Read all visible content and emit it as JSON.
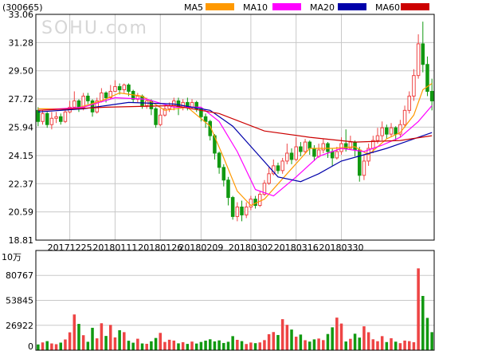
{
  "header": {
    "code": "(300665)",
    "watermark": "SOHU.com"
  },
  "legend": [
    {
      "label": "MA5",
      "color": "#ff9900"
    },
    {
      "label": "MA10",
      "color": "#ff00ff"
    },
    {
      "label": "MA20",
      "color": "#0000aa"
    },
    {
      "label": "MA60",
      "color": "#cc0000"
    }
  ],
  "colors": {
    "up": "#ee4444",
    "down": "#119911",
    "grid": "#c8c8c8",
    "axis": "#000000"
  },
  "volume_unit": "10万",
  "chart_data": [
    {
      "type": "candlestick",
      "price_ticks": [
        "33.06",
        "31.28",
        "29.50",
        "27.72",
        "25.94",
        "24.15",
        "22.37",
        "20.59",
        "18.81"
      ],
      "ylim": [
        18.81,
        33.06
      ],
      "date_ticks": [
        "20171225",
        "20180111",
        "20180126",
        "20180209",
        "20180302",
        "20180316",
        "20180330"
      ],
      "candles": [
        [
          27.0,
          26.3,
          27.2,
          26.0
        ],
        [
          26.3,
          26.8,
          27.0,
          26.1
        ],
        [
          26.8,
          26.1,
          26.9,
          25.9
        ],
        [
          26.1,
          26.5,
          26.9,
          25.8
        ],
        [
          26.5,
          26.6,
          26.9,
          26.2
        ],
        [
          26.6,
          26.3,
          26.8,
          26.1
        ],
        [
          26.3,
          26.9,
          27.1,
          26.2
        ],
        [
          26.9,
          27.2,
          27.6,
          26.8
        ],
        [
          27.2,
          27.6,
          28.2,
          27.1
        ],
        [
          27.6,
          27.2,
          27.7,
          26.9
        ],
        [
          27.2,
          27.9,
          28.1,
          27.0
        ],
        [
          27.9,
          27.6,
          28.1,
          27.4
        ],
        [
          27.6,
          26.9,
          27.7,
          26.6
        ],
        [
          26.9,
          27.6,
          27.8,
          26.8
        ],
        [
          27.6,
          28.1,
          28.4,
          27.5
        ],
        [
          28.1,
          27.8,
          28.2,
          27.5
        ],
        [
          27.8,
          28.2,
          28.6,
          27.7
        ],
        [
          28.2,
          28.5,
          28.9,
          28.2
        ],
        [
          28.5,
          28.3,
          28.7,
          28.0
        ],
        [
          28.3,
          28.6,
          28.7,
          28.1
        ],
        [
          28.6,
          28.2,
          28.7,
          27.9
        ],
        [
          28.2,
          27.7,
          28.3,
          27.5
        ],
        [
          27.7,
          27.9,
          28.1,
          27.5
        ],
        [
          27.9,
          27.3,
          28.0,
          27.1
        ],
        [
          27.3,
          27.6,
          27.8,
          27.1
        ],
        [
          27.6,
          27.1,
          27.7,
          26.7
        ],
        [
          27.1,
          26.1,
          27.2,
          25.9
        ],
        [
          26.1,
          26.7,
          27.1,
          26.0
        ],
        [
          26.7,
          27.1,
          27.3,
          26.6
        ],
        [
          27.1,
          27.3,
          27.5,
          26.9
        ],
        [
          27.3,
          27.6,
          27.8,
          27.0
        ],
        [
          27.6,
          27.2,
          27.8,
          26.7
        ],
        [
          27.2,
          27.5,
          27.7,
          27.0
        ],
        [
          27.5,
          27.2,
          27.8,
          27.0
        ],
        [
          27.2,
          27.5,
          27.7,
          27.1
        ],
        [
          27.5,
          27.1,
          27.6,
          26.9
        ],
        [
          27.1,
          26.6,
          27.2,
          26.3
        ],
        [
          26.6,
          26.3,
          26.8,
          25.9
        ],
        [
          26.3,
          25.4,
          26.4,
          25.1
        ],
        [
          25.4,
          24.3,
          25.5,
          23.9
        ],
        [
          24.3,
          23.4,
          24.4,
          23.0
        ],
        [
          23.4,
          22.6,
          23.6,
          22.2
        ],
        [
          22.6,
          21.5,
          22.8,
          21.0
        ],
        [
          21.5,
          20.3,
          21.6,
          20.1
        ],
        [
          20.3,
          20.9,
          21.2,
          20.0
        ],
        [
          20.9,
          20.4,
          21.3,
          20.0
        ],
        [
          20.4,
          20.9,
          21.2,
          20.2
        ],
        [
          20.9,
          21.4,
          21.6,
          20.7
        ],
        [
          21.4,
          21.0,
          21.6,
          20.8
        ],
        [
          21.0,
          21.7,
          21.9,
          20.9
        ],
        [
          21.7,
          22.4,
          22.6,
          21.6
        ],
        [
          22.4,
          23.0,
          23.4,
          22.3
        ],
        [
          23.0,
          23.5,
          23.9,
          22.9
        ],
        [
          23.5,
          23.2,
          23.7,
          23.0
        ],
        [
          23.2,
          23.8,
          24.0,
          23.0
        ],
        [
          23.8,
          24.3,
          24.9,
          23.6
        ],
        [
          24.3,
          23.9,
          24.6,
          23.6
        ],
        [
          23.9,
          24.7,
          25.3,
          23.8
        ],
        [
          24.7,
          24.4,
          25.0,
          24.1
        ],
        [
          24.4,
          25.0,
          25.2,
          24.3
        ],
        [
          25.0,
          24.6,
          25.1,
          24.2
        ],
        [
          24.6,
          24.1,
          24.8,
          23.8
        ],
        [
          24.1,
          24.5,
          24.9,
          24.0
        ],
        [
          24.5,
          24.9,
          25.2,
          24.3
        ],
        [
          24.9,
          24.4,
          25.0,
          24.0
        ],
        [
          24.4,
          24.0,
          24.6,
          23.5
        ],
        [
          24.0,
          24.4,
          24.7,
          23.9
        ],
        [
          24.4,
          24.9,
          25.3,
          24.2
        ],
        [
          24.9,
          24.6,
          25.8,
          24.4
        ],
        [
          24.6,
          25.0,
          25.4,
          24.5
        ],
        [
          25.0,
          24.5,
          25.1,
          24.1
        ],
        [
          24.5,
          22.9,
          24.7,
          22.5
        ],
        [
          22.9,
          23.8,
          24.2,
          22.6
        ],
        [
          23.8,
          24.6,
          24.9,
          23.5
        ],
        [
          24.6,
          25.1,
          25.4,
          24.3
        ],
        [
          25.1,
          25.4,
          25.9,
          24.9
        ],
        [
          25.4,
          25.9,
          26.3,
          25.1
        ],
        [
          25.9,
          25.5,
          26.1,
          25.2
        ],
        [
          25.5,
          25.9,
          26.2,
          25.3
        ],
        [
          25.9,
          25.5,
          26.0,
          25.1
        ],
        [
          25.5,
          26.1,
          26.4,
          25.3
        ],
        [
          26.1,
          27.0,
          27.3,
          25.9
        ],
        [
          27.0,
          27.9,
          28.2,
          26.8
        ],
        [
          27.9,
          29.2,
          29.6,
          27.6
        ],
        [
          29.2,
          31.2,
          31.8,
          29.0
        ],
        [
          31.2,
          29.9,
          32.6,
          29.4
        ],
        [
          29.9,
          28.2,
          30.4,
          27.9
        ],
        [
          28.2,
          27.6,
          29.0,
          27.0
        ]
      ],
      "ma": {
        "MA5": [
          [
            0,
            27.1
          ],
          [
            8,
            27.1
          ],
          [
            14,
            27.6
          ],
          [
            18,
            28.1
          ],
          [
            23,
            27.9
          ],
          [
            28,
            27.0
          ],
          [
            33,
            27.2
          ],
          [
            38,
            26.0
          ],
          [
            41,
            24.0
          ],
          [
            44,
            21.9
          ],
          [
            47,
            21.0
          ],
          [
            50,
            21.4
          ],
          [
            55,
            23.0
          ],
          [
            60,
            24.6
          ],
          [
            65,
            24.6
          ],
          [
            70,
            24.7
          ],
          [
            73,
            24.2
          ],
          [
            77,
            25.2
          ],
          [
            80,
            25.6
          ],
          [
            83,
            26.7
          ],
          [
            85,
            28.3
          ],
          [
            87,
            28.7
          ]
        ],
        "MA10": [
          [
            0,
            27.0
          ],
          [
            10,
            27.2
          ],
          [
            17,
            27.8
          ],
          [
            24,
            27.7
          ],
          [
            30,
            27.2
          ],
          [
            36,
            27.2
          ],
          [
            40,
            26.3
          ],
          [
            44,
            24.4
          ],
          [
            48,
            22.0
          ],
          [
            52,
            21.6
          ],
          [
            57,
            22.8
          ],
          [
            62,
            24.1
          ],
          [
            67,
            24.6
          ],
          [
            72,
            24.4
          ],
          [
            76,
            24.8
          ],
          [
            80,
            25.3
          ],
          [
            84,
            26.3
          ],
          [
            87,
            27.3
          ]
        ],
        "MA20": [
          [
            0,
            26.9
          ],
          [
            10,
            27.1
          ],
          [
            20,
            27.5
          ],
          [
            30,
            27.4
          ],
          [
            38,
            27.0
          ],
          [
            43,
            26.0
          ],
          [
            48,
            24.4
          ],
          [
            53,
            22.8
          ],
          [
            58,
            22.5
          ],
          [
            62,
            23.0
          ],
          [
            67,
            23.8
          ],
          [
            72,
            24.2
          ],
          [
            77,
            24.6
          ],
          [
            82,
            25.1
          ],
          [
            87,
            25.6
          ]
        ],
        "MA60": [
          [
            0,
            27.0
          ],
          [
            15,
            27.2
          ],
          [
            30,
            27.3
          ],
          [
            40,
            26.8
          ],
          [
            50,
            25.7
          ],
          [
            60,
            25.3
          ],
          [
            70,
            25.0
          ],
          [
            80,
            25.1
          ],
          [
            87,
            25.4
          ]
        ]
      }
    },
    {
      "type": "bar",
      "vol_ticks": [
        "80767",
        "53845",
        "26922",
        "0"
      ],
      "ylim": [
        0,
        107689
      ],
      "volumes": [
        6200,
        8400,
        9800,
        7300,
        6500,
        8200,
        11600,
        19300,
        38600,
        28400,
        16200,
        9100,
        24200,
        12800,
        29100,
        15400,
        27300,
        13800,
        21600,
        19500,
        10200,
        8100,
        12400,
        7300,
        6900,
        9600,
        13200,
        18700,
        8900,
        11300,
        10400,
        7400,
        8600,
        6800,
        9300,
        7200,
        8900,
        10300,
        11800,
        9500,
        10600,
        7800,
        9100,
        15200,
        11200,
        9800,
        6700,
        8300,
        7600,
        8400,
        10900,
        17300,
        19600,
        16400,
        33500,
        27400,
        22300,
        14600,
        16900,
        10800,
        9300,
        11700,
        12600,
        10900,
        17500,
        24700,
        35200,
        28800,
        9400,
        12300,
        17800,
        13600,
        25800,
        19400,
        11800,
        9700,
        15200,
        8800,
        12900,
        9200,
        7600,
        10400,
        9800,
        8600,
        88400,
        58600,
        34900,
        19500
      ]
    }
  ]
}
